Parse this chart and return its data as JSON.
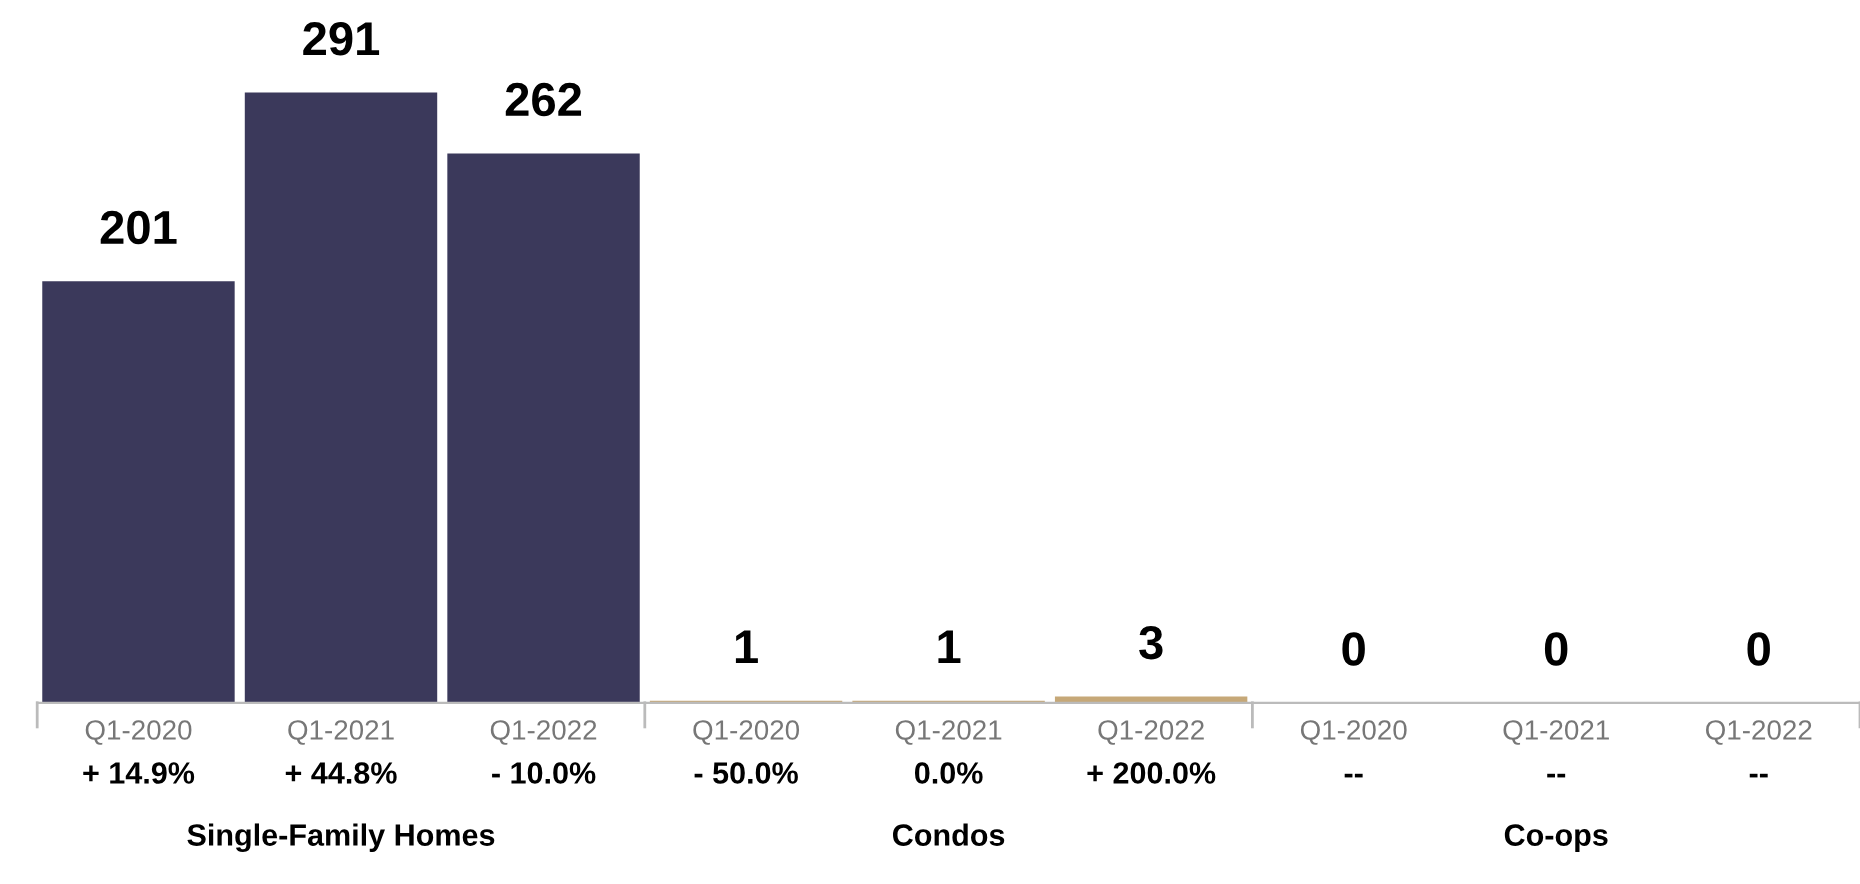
{
  "chart_data": {
    "type": "bar",
    "categories": [
      "Q1-2020",
      "Q1-2021",
      "Q1-2022",
      "Q1-2020",
      "Q1-2021",
      "Q1-2022",
      "Q1-2020",
      "Q1-2021",
      "Q1-2022"
    ],
    "values": [
      201,
      291,
      262,
      1,
      1,
      3,
      0,
      0,
      0
    ],
    "colors": [
      "#3b395b",
      "#3b395b",
      "#3b395b",
      "#c6a878",
      "#c6a878",
      "#c6a878",
      "#8a8a8a",
      "#8a8a8a",
      "#8a8a8a"
    ],
    "data_labels": true,
    "grid": false,
    "legend": false,
    "annotations": [
      "+ 14.9%",
      "+ 44.8%",
      "- 10.0%",
      "- 50.0%",
      "0.0%",
      "+ 200.0%",
      "--",
      "--",
      "--",
      "Single-Family Homes",
      "Condos",
      "Co-ops"
    ]
  }
}
